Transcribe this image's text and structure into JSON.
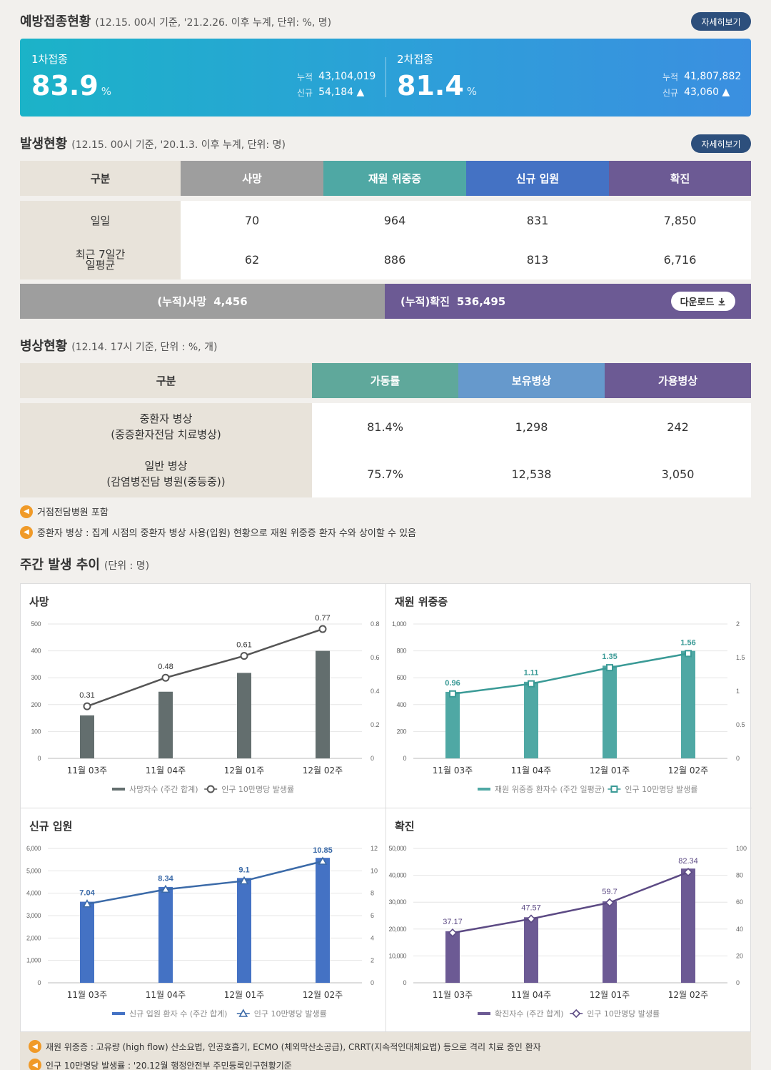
{
  "vaccination": {
    "title": "예방접종현황",
    "sub": "(12.15. 00시 기준, '21.2.26. 이후 누계, 단위: %, 명)",
    "more": "자세히보기",
    "first": {
      "label": "1차접종",
      "rate": "83.9",
      "unit": "%",
      "cum_label": "누적",
      "cum": "43,104,019",
      "new_label": "신규",
      "new": "54,184 ▲"
    },
    "second": {
      "label": "2차접종",
      "rate": "81.4",
      "unit": "%",
      "cum_label": "누적",
      "cum": "41,807,882",
      "new_label": "신규",
      "new": "43,060 ▲"
    }
  },
  "outbreak": {
    "title": "발생현황",
    "sub": "(12.15. 00시 기준, '20.1.3. 이후 누계, 단위: 명)",
    "more": "자세히보기",
    "headers": [
      "구분",
      "사망",
      "재원 위중증",
      "신규 입원",
      "확진"
    ],
    "header_colors": [
      "#e8e3da",
      "#9e9e9e",
      "#4fa8a4",
      "#4472c4",
      "#6c5a94"
    ],
    "rows": [
      {
        "label": "일일",
        "values": [
          "70",
          "964",
          "831",
          "7,850"
        ]
      },
      {
        "label": "최근 7일간\n일평균",
        "values": [
          "62",
          "886",
          "813",
          "6,716"
        ]
      }
    ],
    "cum_death_label": "(누적)사망",
    "cum_death": "4,456",
    "cum_conf_label": "(누적)확진",
    "cum_conf": "536,495",
    "download": "다운로드"
  },
  "beds": {
    "title": "병상현황",
    "sub": "(12.14. 17시 기준, 단위 : %, 개)",
    "headers": [
      "구분",
      "가동률",
      "보유병상",
      "가용병상"
    ],
    "header_colors": [
      "#e8e3da",
      "#5fa89b",
      "#6699cc",
      "#6c5a94"
    ],
    "rows": [
      {
        "label1": "중환자 병상",
        "label2": "(중증환자전담 치료병상)",
        "values": [
          "81.4%",
          "1,298",
          "242"
        ]
      },
      {
        "label1": "일반 병상",
        "label2": "(감염병전담 병원(중등중))",
        "values": [
          "75.7%",
          "12,538",
          "3,050"
        ]
      }
    ],
    "notes": [
      "거점전담병원 포함",
      "중환자 병상 : 집계 시점의 중환자 병상 사용(입원) 현황으로 재원 위중증 환자 수와 상이할 수 있음"
    ]
  },
  "weekly": {
    "title": "주간 발생 추이",
    "sub": "(단위 : 명)"
  },
  "chart_data": [
    {
      "type": "bar",
      "title": "사망",
      "categories": [
        "11월 03주",
        "11월 04주",
        "12월 01주",
        "12월 02주"
      ],
      "series": [
        {
          "name": "사망자수 (주간 합계)",
          "values": [
            160,
            248,
            318,
            400
          ],
          "axis": "left",
          "color": "#636e6e"
        },
        {
          "name": "인구 10만명당 발생률",
          "values": [
            0.31,
            0.48,
            0.61,
            0.77
          ],
          "axis": "right",
          "kind": "line",
          "color": "#555555",
          "marker": "circle"
        }
      ],
      "left_ticks": [
        "0",
        "100",
        "200",
        "300",
        "400",
        "500"
      ],
      "left_max": 500,
      "right_ticks": [
        "0",
        "0.2",
        "0.4",
        "0.6",
        "0.8"
      ],
      "right_max": 0.8,
      "labels": [
        "0.31",
        "0.48",
        "0.61",
        "0.77"
      ]
    },
    {
      "type": "bar",
      "title": "재원 위중증",
      "categories": [
        "11월 03주",
        "11월 04주",
        "12월 01주",
        "12월 02주"
      ],
      "series": [
        {
          "name": "재원 위중증 환자수 (주간 일평균)",
          "values": [
            495,
            570,
            690,
            800
          ],
          "axis": "left",
          "color": "#4fa8a4"
        },
        {
          "name": "인구 10만명당 발생률",
          "values": [
            0.96,
            1.11,
            1.35,
            1.56
          ],
          "axis": "right",
          "kind": "line",
          "color": "#3a9a96",
          "marker": "square"
        }
      ],
      "left_ticks": [
        "0",
        "200",
        "400",
        "600",
        "800",
        "1,000"
      ],
      "left_max": 1000,
      "right_ticks": [
        "0",
        "0.5",
        "1",
        "1.5",
        "2"
      ],
      "right_max": 2,
      "labels": [
        "0.96",
        "1.11",
        "1.35",
        "1.56"
      ]
    },
    {
      "type": "bar",
      "title": "신규 입원",
      "categories": [
        "11월 03주",
        "11월 04주",
        "12월 01주",
        "12월 02주"
      ],
      "series": [
        {
          "name": "신규 입원 환자 수 (주간 합계)",
          "values": [
            3620,
            4280,
            4680,
            5580
          ],
          "axis": "left",
          "color": "#4472c4"
        },
        {
          "name": "인구 10만명당 발생률",
          "values": [
            7.04,
            8.34,
            9.1,
            10.85
          ],
          "axis": "right",
          "kind": "line",
          "color": "#3b6aa8",
          "marker": "triangle"
        }
      ],
      "left_ticks": [
        "0",
        "1,000",
        "2,000",
        "3,000",
        "4,000",
        "5,000",
        "6,000"
      ],
      "left_max": 6000,
      "right_ticks": [
        "0",
        "2",
        "4",
        "6",
        "8",
        "10",
        "12"
      ],
      "right_max": 12,
      "labels": [
        "7.04",
        "8.34",
        "9.1",
        "10.85"
      ]
    },
    {
      "type": "bar",
      "title": "확진",
      "categories": [
        "11월 03주",
        "11월 04주",
        "12월 01주",
        "12월 02주"
      ],
      "series": [
        {
          "name": "확진자수 (주간 합계)",
          "values": [
            19200,
            24400,
            30300,
            42500
          ],
          "axis": "left",
          "color": "#6c5a94"
        },
        {
          "name": "인구 10만명당 발생률",
          "values": [
            37.17,
            47.57,
            59.7,
            82.34
          ],
          "axis": "right",
          "kind": "line",
          "color": "#5c4a84",
          "marker": "diamond"
        }
      ],
      "left_ticks": [
        "0",
        "10,000",
        "20,000",
        "30,000",
        "40,000",
        "50,000"
      ],
      "left_max": 50000,
      "right_ticks": [
        "0",
        "20",
        "40",
        "60",
        "80",
        "100"
      ],
      "right_max": 100,
      "labels": [
        "37.17",
        "47.57",
        "59.7",
        "82.34"
      ]
    }
  ],
  "footer_notes": [
    "재원 위중증 : 고유량 (high flow) 산소요법, 인공호흡기, ECMO (체외막산소공급), CRRT(지속적인대체요법) 등으로 격리 치료 중인 환자",
    "인구 10만명당 발생률 : '20.12월 행정안전부 주민등록인구현황기준"
  ],
  "icons": {
    "speaker": "speaker-icon",
    "download": "download-icon",
    "arrow_up": "arrow-up-icon"
  }
}
